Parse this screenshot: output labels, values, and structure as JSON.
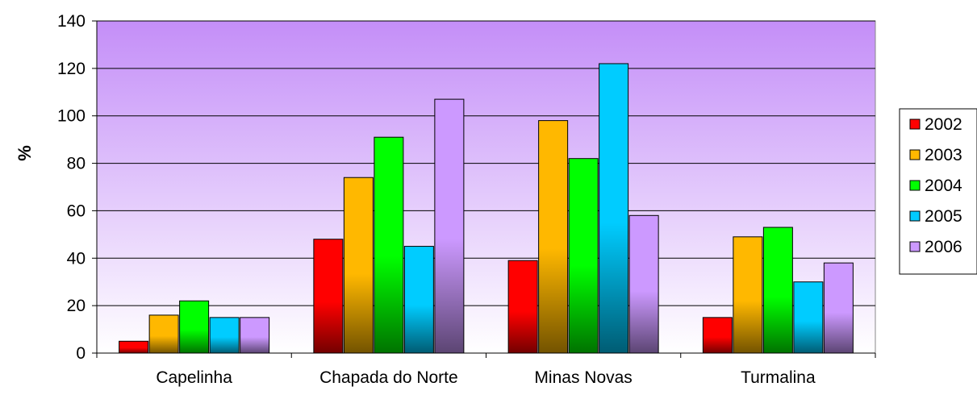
{
  "chart_data": {
    "type": "bar",
    "title": "",
    "xlabel": "",
    "ylabel": "%",
    "ylim": [
      0,
      140
    ],
    "yticks": [
      "0",
      "20",
      "40",
      "60",
      "80",
      "100",
      "120",
      "140"
    ],
    "grid": true,
    "legend_position": "right",
    "categories": [
      "Capelinha",
      "Chapada do Norte",
      "Minas Novas",
      "Turmalina"
    ],
    "series": [
      {
        "name": "2002",
        "color": "#ff0000",
        "values": [
          5,
          48,
          39,
          15
        ]
      },
      {
        "name": "2003",
        "color": "#ffb800",
        "values": [
          16,
          74,
          98,
          49
        ]
      },
      {
        "name": "2004",
        "color": "#00ff00",
        "values": [
          22,
          91,
          82,
          53
        ]
      },
      {
        "name": "2005",
        "color": "#00ccff",
        "values": [
          15,
          45,
          122,
          30
        ]
      },
      {
        "name": "2006",
        "color": "#cc99ff",
        "values": [
          15,
          107,
          58,
          38
        ]
      }
    ]
  }
}
